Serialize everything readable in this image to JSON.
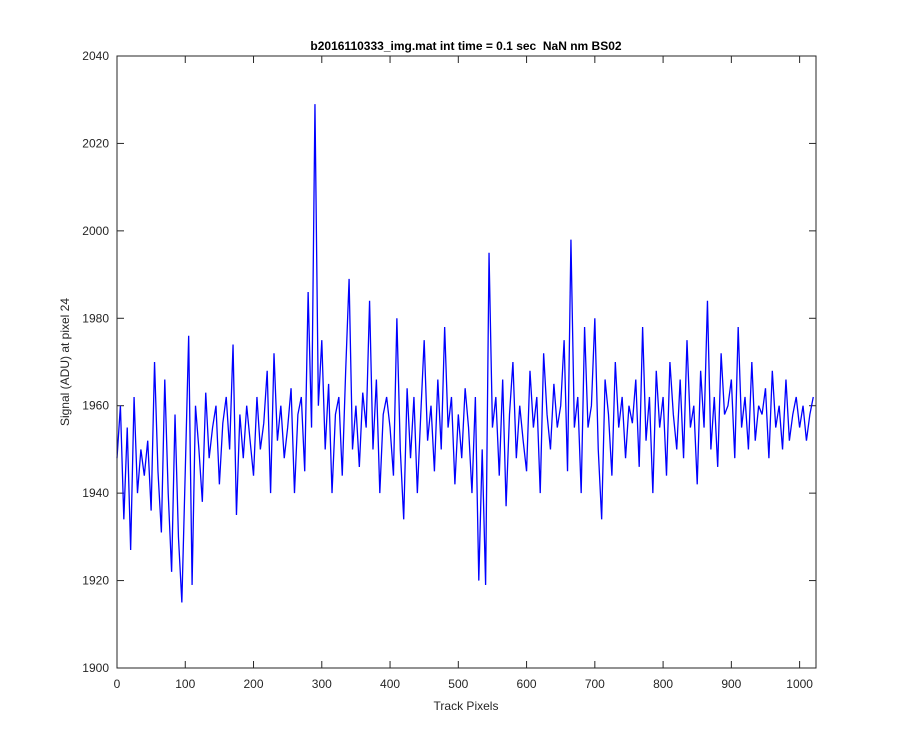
{
  "chart_data": {
    "type": "line",
    "title": "b2016110333_img.mat int time = 0.1 sec  NaN nm BS02",
    "x_label": "Track Pixels",
    "y_label": "Signal (ADU) at pixel 24",
    "x": [
      0,
      5,
      10,
      15,
      20,
      25,
      30,
      35,
      40,
      45,
      50,
      55,
      60,
      65,
      70,
      75,
      80,
      85,
      90,
      95,
      100,
      105,
      110,
      115,
      120,
      125,
      130,
      135,
      140,
      145,
      150,
      155,
      160,
      165,
      170,
      175,
      180,
      185,
      190,
      195,
      200,
      205,
      210,
      215,
      220,
      225,
      230,
      235,
      240,
      245,
      250,
      255,
      260,
      265,
      270,
      275,
      280,
      285,
      290,
      295,
      300,
      305,
      310,
      315,
      320,
      325,
      330,
      335,
      340,
      345,
      350,
      355,
      360,
      365,
      370,
      375,
      380,
      385,
      390,
      395,
      400,
      405,
      410,
      415,
      420,
      425,
      430,
      435,
      440,
      445,
      450,
      455,
      460,
      465,
      470,
      475,
      480,
      485,
      490,
      495,
      500,
      505,
      510,
      515,
      520,
      525,
      530,
      535,
      540,
      545,
      550,
      555,
      560,
      565,
      570,
      575,
      580,
      585,
      590,
      595,
      600,
      605,
      610,
      615,
      620,
      625,
      630,
      635,
      640,
      645,
      650,
      655,
      660,
      665,
      670,
      675,
      680,
      685,
      690,
      695,
      700,
      705,
      710,
      715,
      720,
      725,
      730,
      735,
      740,
      745,
      750,
      755,
      760,
      765,
      770,
      775,
      780,
      785,
      790,
      795,
      800,
      805,
      810,
      815,
      820,
      825,
      830,
      835,
      840,
      845,
      850,
      855,
      860,
      865,
      870,
      875,
      880,
      885,
      890,
      895,
      900,
      905,
      910,
      915,
      920,
      925,
      930,
      935,
      940,
      945,
      950,
      955,
      960,
      965,
      970,
      975,
      980,
      985,
      990,
      995,
      1000,
      1005,
      1010,
      1015,
      1020
    ],
    "series": [
      {
        "color": "#0000ff",
        "values": [
          1948,
          1960,
          1934,
          1955,
          1927,
          1962,
          1940,
          1950,
          1944,
          1952,
          1936,
          1970,
          1945,
          1931,
          1966,
          1940,
          1922,
          1958,
          1930,
          1915,
          1945,
          1976,
          1919,
          1960,
          1950,
          1938,
          1963,
          1948,
          1955,
          1960,
          1942,
          1956,
          1962,
          1950,
          1974,
          1935,
          1958,
          1948,
          1960,
          1952,
          1944,
          1962,
          1950,
          1956,
          1968,
          1940,
          1972,
          1952,
          1960,
          1948,
          1955,
          1964,
          1940,
          1958,
          1962,
          1945,
          1986,
          1955,
          2029,
          1960,
          1975,
          1950,
          1965,
          1940,
          1958,
          1962,
          1944,
          1968,
          1989,
          1950,
          1960,
          1946,
          1963,
          1955,
          1984,
          1950,
          1966,
          1940,
          1958,
          1962,
          1955,
          1944,
          1980,
          1950,
          1934,
          1964,
          1948,
          1962,
          1940,
          1958,
          1975,
          1952,
          1960,
          1945,
          1966,
          1950,
          1978,
          1955,
          1962,
          1942,
          1958,
          1948,
          1964,
          1955,
          1940,
          1962,
          1920,
          1950,
          1919,
          1995,
          1955,
          1962,
          1944,
          1966,
          1937,
          1958,
          1970,
          1948,
          1960,
          1952,
          1945,
          1968,
          1955,
          1962,
          1940,
          1972,
          1958,
          1950,
          1965,
          1955,
          1960,
          1975,
          1945,
          1998,
          1955,
          1962,
          1940,
          1978,
          1955,
          1960,
          1980,
          1950,
          1934,
          1966,
          1958,
          1944,
          1970,
          1955,
          1962,
          1948,
          1960,
          1956,
          1966,
          1946,
          1978,
          1952,
          1962,
          1940,
          1968,
          1955,
          1962,
          1944,
          1970,
          1958,
          1950,
          1966,
          1948,
          1975,
          1955,
          1960,
          1942,
          1968,
          1955,
          1984,
          1950,
          1962,
          1946,
          1972,
          1958,
          1960,
          1966,
          1948,
          1978,
          1955,
          1962,
          1950,
          1970,
          1952,
          1960,
          1958,
          1964,
          1948,
          1968,
          1955,
          1960,
          1950,
          1966,
          1952,
          1958,
          1962,
          1955,
          1960,
          1952,
          1958,
          1962
        ]
      }
    ],
    "xlim": [
      0,
      1024
    ],
    "xticks": [
      0,
      100,
      200,
      300,
      400,
      500,
      600,
      700,
      800,
      900,
      1000
    ],
    "ylim": [
      1900,
      2040
    ],
    "yticks": [
      1900,
      1920,
      1940,
      1960,
      1980,
      2000,
      2020,
      2040
    ]
  }
}
